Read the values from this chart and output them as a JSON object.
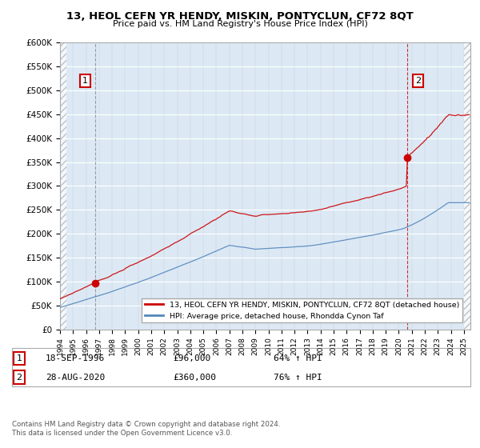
{
  "title": "13, HEOL CEFN YR HENDY, MISKIN, PONTYCLUN, CF72 8QT",
  "subtitle": "Price paid vs. HM Land Registry's House Price Index (HPI)",
  "ylabel_ticks": [
    "£0",
    "£50K",
    "£100K",
    "£150K",
    "£200K",
    "£250K",
    "£300K",
    "£350K",
    "£400K",
    "£450K",
    "£500K",
    "£550K",
    "£600K"
  ],
  "ylim": [
    0,
    600000
  ],
  "ytick_vals": [
    0,
    50000,
    100000,
    150000,
    200000,
    250000,
    300000,
    350000,
    400000,
    450000,
    500000,
    550000,
    600000
  ],
  "xmin": 1994.0,
  "xmax": 2025.5,
  "sale1_x": 1996.72,
  "sale1_y": 96000,
  "sale1_label": "1",
  "sale1_date": "18-SEP-1996",
  "sale1_price": "£96,000",
  "sale1_hpi": "64% ↑ HPI",
  "sale2_x": 2020.66,
  "sale2_y": 360000,
  "sale2_label": "2",
  "sale2_date": "28-AUG-2020",
  "sale2_price": "£360,000",
  "sale2_hpi": "76% ↑ HPI",
  "red_color": "#cc0000",
  "blue_color": "#5588bb",
  "legend_label1": "13, HEOL CEFN YR HENDY, MISKIN, PONTYCLUN, CF72 8QT (detached house)",
  "legend_label2": "HPI: Average price, detached house, Rhondda Cynon Taf",
  "footer": "Contains HM Land Registry data © Crown copyright and database right 2024.\nThis data is licensed under the Open Government Licence v3.0.",
  "background_color": "#ffffff",
  "plot_bg_color": "#dce9f5"
}
